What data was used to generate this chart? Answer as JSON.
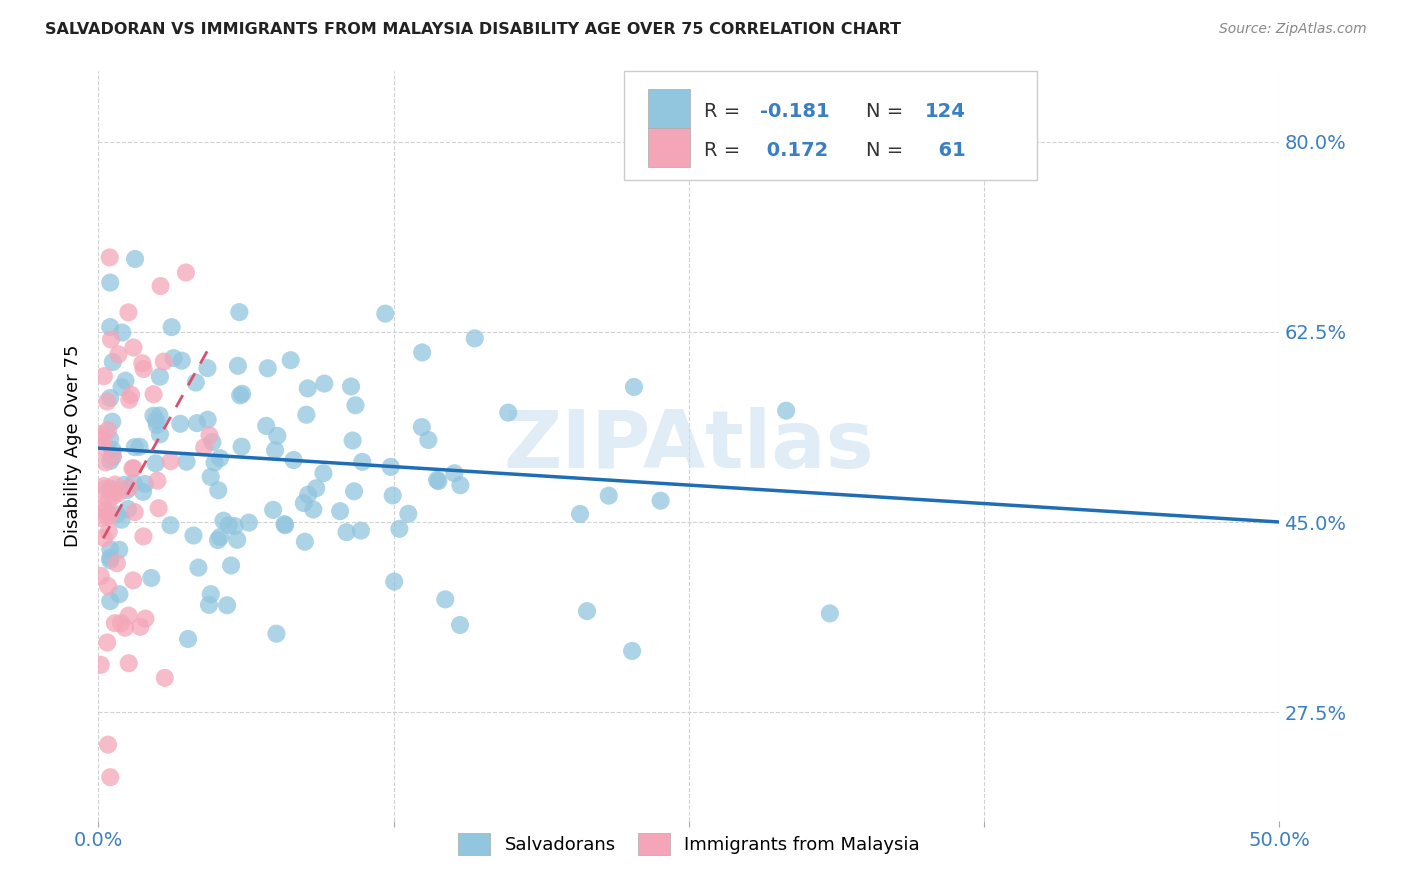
{
  "title": "SALVADORAN VS IMMIGRANTS FROM MALAYSIA DISABILITY AGE OVER 75 CORRELATION CHART",
  "source": "Source: ZipAtlas.com",
  "ylabel": "Disability Age Over 75",
  "ytick_values": [
    0.275,
    0.45,
    0.625,
    0.8
  ],
  "xlim": [
    0.0,
    0.5
  ],
  "ylim": [
    0.175,
    0.865
  ],
  "blue_color": "#92c5de",
  "pink_color": "#f4a6b8",
  "line_blue": "#1f6eb5",
  "line_pink": "#d94f6e",
  "watermark_color": "#c8dff0",
  "title_color": "#222222",
  "tick_color": "#3a7fc1",
  "grid_color": "#cccccc",
  "blue_line_x0": 0.0,
  "blue_line_y0": 0.518,
  "blue_line_x1": 0.5,
  "blue_line_y1": 0.45,
  "pink_line_x0": 0.002,
  "pink_line_y0": 0.435,
  "pink_line_x1": 0.048,
  "pink_line_y1": 0.615
}
